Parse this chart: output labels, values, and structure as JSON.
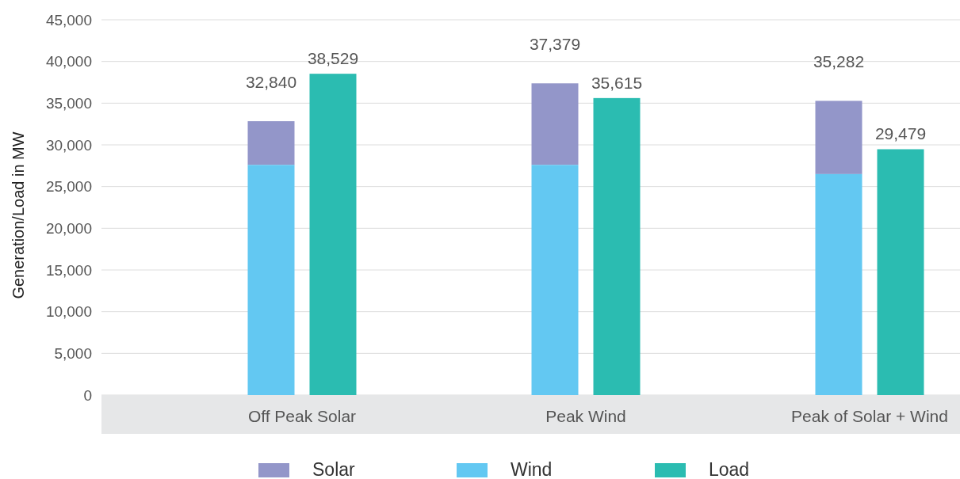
{
  "chart_data": {
    "type": "bar",
    "ylabel": "Generation/Load in MW",
    "categories": [
      "Off Peak Solar",
      "Peak Wind",
      "Peak of Solar + Wind"
    ],
    "series": [
      {
        "name": "Solar",
        "color": "#9396c9",
        "values": [
          5240,
          9779,
          8782
        ],
        "base": [
          27600,
          27600,
          26500
        ]
      },
      {
        "name": "Wind",
        "color": "#63c8f2",
        "values": [
          27600,
          27600,
          26500
        ]
      },
      {
        "name": "Load",
        "color": "#2bbcb1",
        "values": [
          38529,
          35615,
          29479
        ],
        "value_labels": [
          "38,529",
          "35,615",
          "29,479"
        ]
      }
    ],
    "annotations": [
      "32,840",
      "37,379",
      "35,282"
    ],
    "ylim": [
      0,
      45000
    ],
    "yticks": [
      {
        "value": 0,
        "label": "0"
      },
      {
        "value": 5000,
        "label": "5,000"
      },
      {
        "value": 10000,
        "label": "10,000"
      },
      {
        "value": 15000,
        "label": "15,000"
      },
      {
        "value": 20000,
        "label": "20,000"
      },
      {
        "value": 25000,
        "label": "25,000"
      },
      {
        "value": 30000,
        "label": "30,000"
      },
      {
        "value": 35000,
        "label": "35,000"
      },
      {
        "value": 40000,
        "label": "40,000"
      },
      {
        "value": 45000,
        "label": "45,000"
      }
    ],
    "grid": "y",
    "legend": "bottom"
  }
}
